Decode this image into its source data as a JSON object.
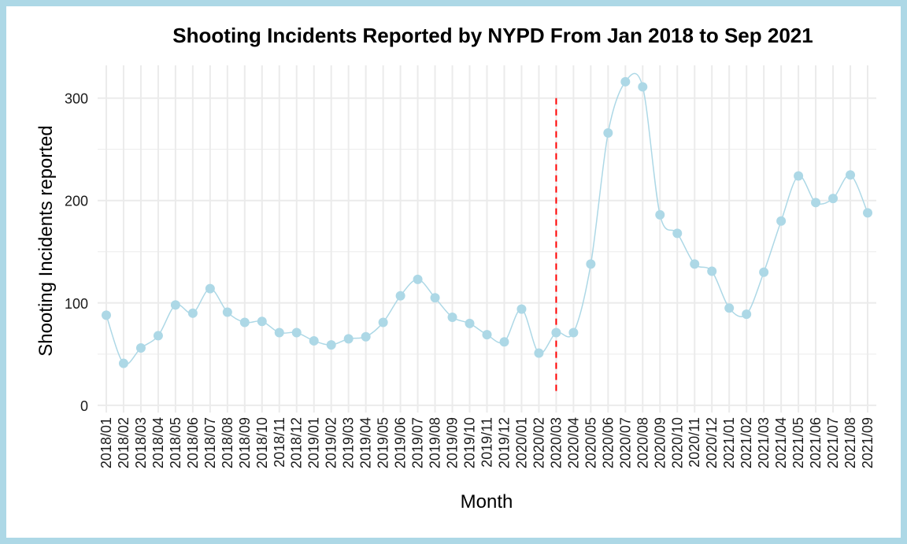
{
  "colors": {
    "border": "#add8e6",
    "series": "#add8e6",
    "reference_line": "#ff0000",
    "grid": "#ebebeb"
  },
  "chart_data": {
    "type": "line",
    "title": "Shooting Incidents Reported by NYPD From Jan 2018 to Sep 2021",
    "xlabel": "Month",
    "ylabel": "Shooting Incidents reported",
    "x": [
      "2018/01",
      "2018/02",
      "2018/03",
      "2018/04",
      "2018/05",
      "2018/06",
      "2018/07",
      "2018/08",
      "2018/09",
      "2018/10",
      "2018/11",
      "2018/12",
      "2019/01",
      "2019/02",
      "2019/03",
      "2019/04",
      "2019/05",
      "2019/06",
      "2019/07",
      "2019/08",
      "2019/09",
      "2019/10",
      "2019/11",
      "2019/12",
      "2020/01",
      "2020/02",
      "2020/03",
      "2020/04",
      "2020/05",
      "2020/06",
      "2020/07",
      "2020/08",
      "2020/09",
      "2020/10",
      "2020/11",
      "2020/12",
      "2021/01",
      "2021/02",
      "2021/03",
      "2021/04",
      "2021/05",
      "2021/06",
      "2021/07",
      "2021/08",
      "2021/09"
    ],
    "series": [
      {
        "values": [
          88,
          41,
          56,
          68,
          98,
          90,
          114,
          91,
          81,
          82,
          71,
          71,
          63,
          59,
          65,
          67,
          81,
          107,
          123,
          105,
          86,
          80,
          69,
          62,
          94,
          51,
          71,
          71,
          138,
          266,
          316,
          311,
          186,
          168,
          138,
          131,
          95,
          89,
          130,
          180,
          224,
          198,
          202,
          225,
          188
        ]
      }
    ],
    "yticks": [
      0,
      100,
      200,
      300
    ],
    "ylim": [
      -7,
      332
    ],
    "reference_line": {
      "x": "2020/03",
      "y_from": 10,
      "y_to": 300,
      "style": "dashed"
    },
    "grid": true,
    "legend": "none"
  }
}
